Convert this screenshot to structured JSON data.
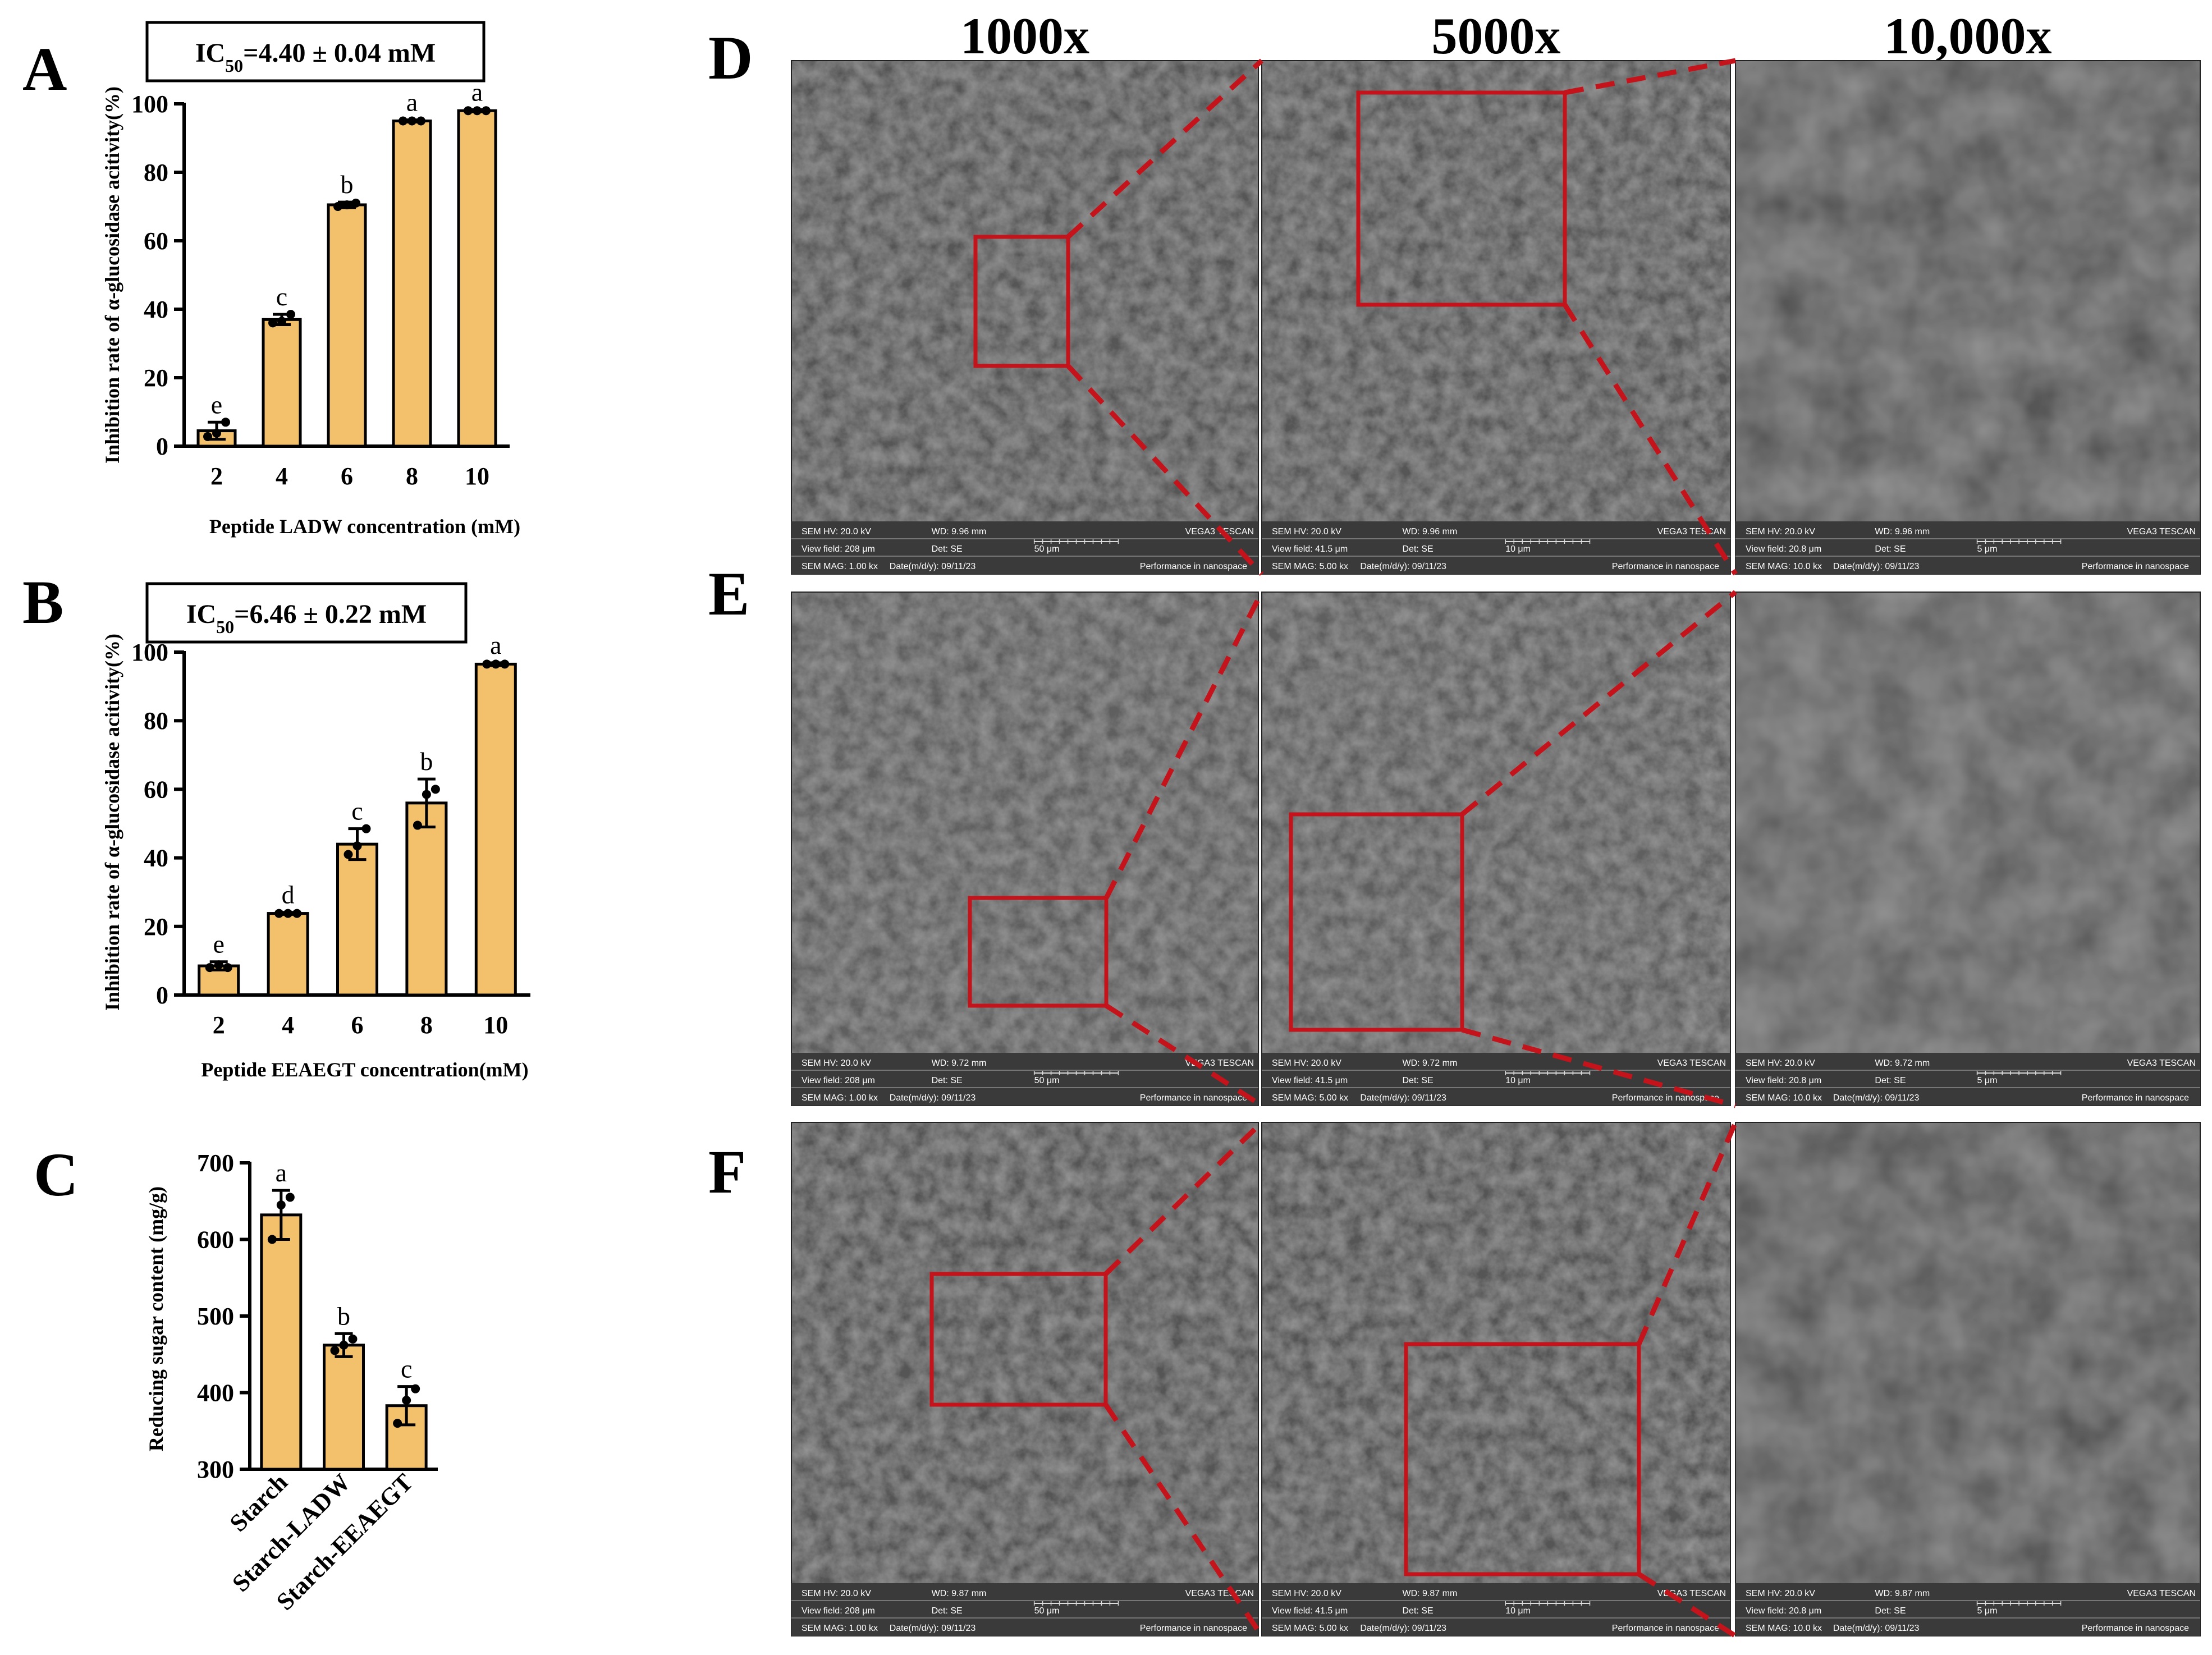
{
  "panel_labels": {
    "A": "A",
    "B": "B",
    "C": "C",
    "D": "D",
    "E": "E",
    "F": "F"
  },
  "magnifications": [
    "1000x",
    "5000x",
    "10,000x"
  ],
  "chart_data": [
    {
      "id": "A",
      "type": "bar",
      "annotation": {
        "prefix": "IC",
        "sub": "50",
        "suffix": "=4.40 ± 0.04 mM"
      },
      "categories": [
        "2",
        "4",
        "6",
        "8",
        "10"
      ],
      "values": [
        4.5,
        37,
        70.5,
        95,
        98
      ],
      "errors": [
        2.5,
        1.5,
        0.8,
        0.3,
        0.3
      ],
      "points": [
        [
          2.8,
          3.8,
          7.0
        ],
        [
          36.0,
          36.5,
          38.5
        ],
        [
          70.0,
          70.5,
          71.0
        ],
        [
          95,
          95,
          95
        ],
        [
          98,
          98,
          98
        ]
      ],
      "letters": [
        "e",
        "c",
        "b",
        "a",
        "a"
      ],
      "ylim": [
        0,
        100
      ],
      "yticks": [
        0,
        20,
        40,
        60,
        80,
        100
      ],
      "ylabel": "Inhibition rate of α-glucosidase acitivity(%)",
      "xlabel": "Peptide LADW concentration (mM)",
      "color": "#F3C16C"
    },
    {
      "id": "B",
      "type": "bar",
      "annotation": {
        "prefix": "IC",
        "sub": "50",
        "suffix": "=6.46 ± 0.22 mM"
      },
      "categories": [
        "2",
        "4",
        "6",
        "8",
        "10"
      ],
      "values": [
        8.5,
        23.8,
        44,
        56,
        96.5
      ],
      "errors": [
        1.2,
        0.3,
        4.5,
        7.0,
        0.4
      ],
      "points": [
        [
          8.0,
          8.8,
          8.0
        ],
        [
          23.8,
          23.8,
          23.8
        ],
        [
          41.0,
          43.5,
          48.5
        ],
        [
          49.5,
          58.5,
          60.0
        ],
        [
          96.5,
          96.5,
          96.5
        ]
      ],
      "letters": [
        "e",
        "d",
        "c",
        "b",
        "a"
      ],
      "ylim": [
        0,
        100
      ],
      "yticks": [
        0,
        20,
        40,
        60,
        80,
        100
      ],
      "ylabel": "Inhibition rate of α-glucosidase acitivity(%)",
      "xlabel": "Peptide EEAEGT concentration(mM)",
      "color": "#F3C16C"
    },
    {
      "id": "C",
      "type": "bar",
      "categories": [
        "Starch",
        "Starch-LADW",
        "Starch-EEAEGT"
      ],
      "values": [
        632,
        462,
        383
      ],
      "errors": [
        32,
        15,
        25
      ],
      "points": [
        [
          600,
          645,
          655
        ],
        [
          455,
          462,
          470
        ],
        [
          360,
          390,
          405
        ]
      ],
      "letters": [
        "a",
        "b",
        "c"
      ],
      "ylim": [
        300,
        700
      ],
      "yticks": [
        300,
        400,
        500,
        600,
        700
      ],
      "ylabel": "Reducing sugar content (mg/g)",
      "xlabel": "",
      "color": "#F3C16C"
    }
  ],
  "sem_rows": [
    {
      "panel": "D",
      "wd": "9.96 mm",
      "images": [
        {
          "hv": "SEM HV: 20.0 kV",
          "wd": "WD: 9.96 mm",
          "brand": "VEGA3 TESCAN",
          "vf": "View field: 208 μm",
          "det": "Det: SE",
          "scale": "50 μm",
          "mag": "SEM MAG: 1.00 kx",
          "date": "Date(m/d/y): 09/11/23",
          "perf": "Performance in nanospace"
        },
        {
          "hv": "SEM HV: 20.0 kV",
          "wd": "WD: 9.96 mm",
          "brand": "VEGA3 TESCAN",
          "vf": "View field: 41.5 μm",
          "det": "Det: SE",
          "scale": "10 μm",
          "mag": "SEM MAG: 5.00 kx",
          "date": "Date(m/d/y): 09/11/23",
          "perf": "Performance in nanospace"
        },
        {
          "hv": "SEM HV: 20.0 kV",
          "wd": "WD: 9.96 mm",
          "brand": "VEGA3 TESCAN",
          "vf": "View field: 20.8 μm",
          "det": "Det: SE",
          "scale": "5 μm",
          "mag": "SEM MAG: 10.0 kx",
          "date": "Date(m/d/y): 09/11/23",
          "perf": "Performance in nanospace"
        }
      ]
    },
    {
      "panel": "E",
      "images": [
        {
          "hv": "SEM HV: 20.0 kV",
          "wd": "WD: 9.72 mm",
          "brand": "VEGA3 TESCAN",
          "vf": "View field: 208 μm",
          "det": "Det: SE",
          "scale": "50 μm",
          "mag": "SEM MAG: 1.00 kx",
          "date": "Date(m/d/y): 09/11/23",
          "perf": "Performance in nanospace"
        },
        {
          "hv": "SEM HV: 20.0 kV",
          "wd": "WD: 9.72 mm",
          "brand": "VEGA3 TESCAN",
          "vf": "View field: 41.5 μm",
          "det": "Det: SE",
          "scale": "10 μm",
          "mag": "SEM MAG: 5.00 kx",
          "date": "Date(m/d/y): 09/11/23",
          "perf": "Performance in nanospace"
        },
        {
          "hv": "SEM HV: 20.0 kV",
          "wd": "WD: 9.72 mm",
          "brand": "VEGA3 TESCAN",
          "vf": "View field: 20.8 μm",
          "det": "Det: SE",
          "scale": "5 μm",
          "mag": "SEM MAG: 10.0 kx",
          "date": "Date(m/d/y): 09/11/23",
          "perf": "Performance in nanospace"
        }
      ]
    },
    {
      "panel": "F",
      "images": [
        {
          "hv": "SEM HV: 20.0 kV",
          "wd": "WD: 9.87 mm",
          "brand": "VEGA3 TESCAN",
          "vf": "View field: 208 μm",
          "det": "Det: SE",
          "scale": "50 μm",
          "mag": "SEM MAG: 1.00 kx",
          "date": "Date(m/d/y): 09/11/23",
          "perf": "Performance in nanospace"
        },
        {
          "hv": "SEM HV: 20.0 kV",
          "wd": "WD: 9.87 mm",
          "brand": "VEGA3 TESCAN",
          "vf": "View field: 41.5 μm",
          "det": "Det: SE",
          "scale": "10 μm",
          "mag": "SEM MAG: 5.00 kx",
          "date": "Date(m/d/y): 09/11/23",
          "perf": "Performance in nanospace"
        },
        {
          "hv": "SEM HV: 20.0 kV",
          "wd": "WD: 9.87 mm",
          "brand": "VEGA3 TESCAN",
          "vf": "View field: 20.8 μm",
          "det": "Det: SE",
          "scale": "5 μm",
          "mag": "SEM MAG: 10.0 kx",
          "date": "Date(m/d/y): 09/11/23",
          "perf": "Performance in nanospace"
        }
      ]
    }
  ],
  "colors": {
    "bar": "#F3C16C",
    "zoom": "#C4131B"
  }
}
